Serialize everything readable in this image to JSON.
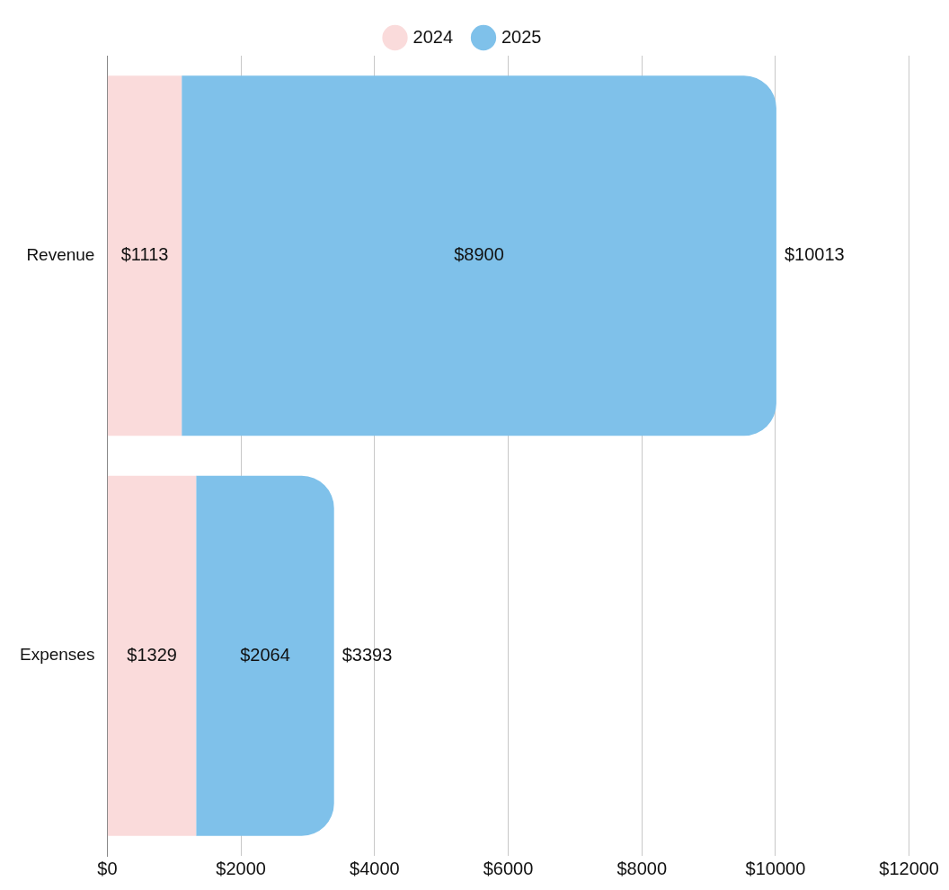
{
  "chart_data": {
    "type": "bar",
    "orientation": "horizontal",
    "stacked": true,
    "categories": [
      "Revenue",
      "Expenses"
    ],
    "series": [
      {
        "name": "2024",
        "color": "#fadbdb",
        "values": [
          1113,
          1329
        ],
        "value_labels": [
          "$1113",
          "$1329"
        ]
      },
      {
        "name": "2025",
        "color": "#7fc1ea",
        "values": [
          8900,
          2064
        ],
        "value_labels": [
          "$8900",
          "$2064"
        ]
      }
    ],
    "totals": [
      "$10013",
      "$3393"
    ],
    "xlim": [
      0,
      12000
    ],
    "xticks": [
      {
        "value": 0,
        "label": "$0"
      },
      {
        "value": 2000,
        "label": "$2000"
      },
      {
        "value": 4000,
        "label": "$4000"
      },
      {
        "value": 6000,
        "label": "$6000"
      },
      {
        "value": 8000,
        "label": "$8000"
      },
      {
        "value": 10000,
        "label": "$10000"
      },
      {
        "value": 12000,
        "label": "$12000"
      }
    ],
    "grid": "x",
    "legend": "top"
  }
}
